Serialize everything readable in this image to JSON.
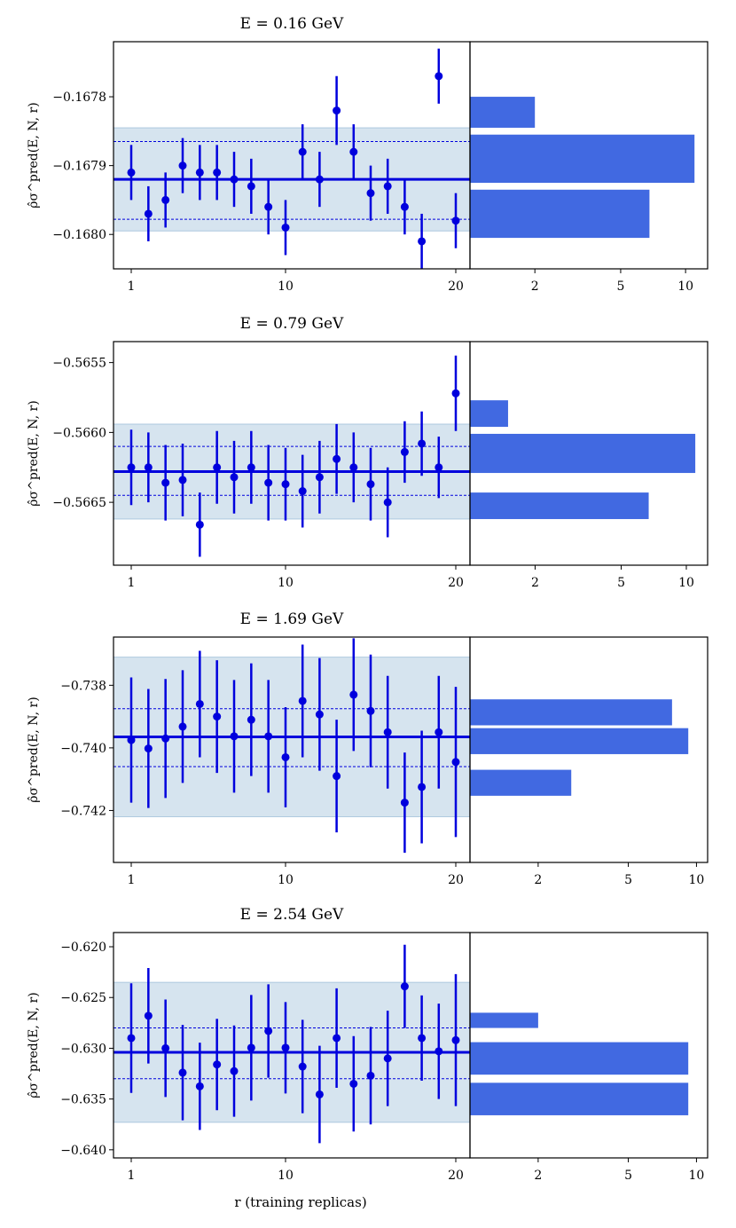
{
  "figure": {
    "xlabel": "r (training replicas)"
  },
  "chart_data": [
    {
      "type": "scatter",
      "title": "E = 0.16 GeV",
      "ylabel": "ρ̂σ^pred(E, N, r)",
      "x_ticks": [
        "1",
        "10",
        "20"
      ],
      "y_ticks": [
        "−0.1678",
        "−0.1679",
        "−0.1680"
      ],
      "y_tick_values": [
        -0.1678,
        -0.1679,
        -0.168
      ],
      "ylim": [
        -0.16805,
        -0.16772
      ],
      "mean": -0.16792,
      "inner_band": [
        -0.167865,
        -0.167978
      ],
      "outer_band": [
        -0.167845,
        -0.167995
      ],
      "points": [
        {
          "x": 1,
          "y": -0.16791,
          "err": 4e-05
        },
        {
          "x": 2,
          "y": -0.16797,
          "err": 4e-05
        },
        {
          "x": 3,
          "y": -0.16795,
          "err": 4e-05
        },
        {
          "x": 4,
          "y": -0.1679,
          "err": 4e-05
        },
        {
          "x": 5,
          "y": -0.16791,
          "err": 4e-05
        },
        {
          "x": 6,
          "y": -0.16791,
          "err": 4e-05
        },
        {
          "x": 7,
          "y": -0.16792,
          "err": 4e-05
        },
        {
          "x": 8,
          "y": -0.16793,
          "err": 4e-05
        },
        {
          "x": 9,
          "y": -0.16796,
          "err": 4e-05
        },
        {
          "x": 10,
          "y": -0.16799,
          "err": 4e-05
        },
        {
          "x": 11,
          "y": -0.16788,
          "err": 4e-05
        },
        {
          "x": 12,
          "y": -0.16792,
          "err": 4e-05
        },
        {
          "x": 13,
          "y": -0.16782,
          "err": 5e-05
        },
        {
          "x": 14,
          "y": -0.16788,
          "err": 4e-05
        },
        {
          "x": 15,
          "y": -0.16794,
          "err": 4e-05
        },
        {
          "x": 16,
          "y": -0.16793,
          "err": 4e-05
        },
        {
          "x": 17,
          "y": -0.16796,
          "err": 4e-05
        },
        {
          "x": 18,
          "y": -0.16801,
          "err": 4e-05
        },
        {
          "x": 19,
          "y": -0.16777,
          "err": 4e-05
        },
        {
          "x": 20,
          "y": -0.16798,
          "err": 4e-05
        }
      ],
      "histogram": {
        "x_ticks": [
          "2",
          "5",
          "10"
        ],
        "x_tick_values": [
          2,
          5,
          10
        ],
        "xmax": 11.3,
        "bins": [
          {
            "y0": -0.1678,
            "y1": -0.167845,
            "count": 2
          },
          {
            "y0": -0.167855,
            "y1": -0.167925,
            "count": 11
          },
          {
            "y0": -0.167935,
            "y1": -0.168005,
            "count": 6.8
          }
        ]
      }
    },
    {
      "type": "scatter",
      "title": "E = 0.79 GeV",
      "ylabel": "ρ̂σ^pred(E, N, r)",
      "x_ticks": [
        "1",
        "10",
        "20"
      ],
      "y_ticks": [
        "−0.5655",
        "−0.5660",
        "−0.5665"
      ],
      "y_tick_values": [
        -0.5655,
        -0.566,
        -0.5665
      ],
      "ylim": [
        -0.56695,
        -0.56535
      ],
      "mean": -0.56628,
      "inner_band": [
        -0.5661,
        -0.56645
      ],
      "outer_band": [
        -0.56594,
        -0.56662
      ],
      "points": [
        {
          "x": 1,
          "y": -0.56625,
          "err": 0.00027
        },
        {
          "x": 2,
          "y": -0.56625,
          "err": 0.00025
        },
        {
          "x": 3,
          "y": -0.56636,
          "err": 0.00027
        },
        {
          "x": 4,
          "y": -0.56634,
          "err": 0.00026
        },
        {
          "x": 5,
          "y": -0.56666,
          "err": 0.00023
        },
        {
          "x": 6,
          "y": -0.56625,
          "err": 0.00026
        },
        {
          "x": 7,
          "y": -0.56632,
          "err": 0.00026
        },
        {
          "x": 8,
          "y": -0.56625,
          "err": 0.00026
        },
        {
          "x": 9,
          "y": -0.56636,
          "err": 0.00027
        },
        {
          "x": 10,
          "y": -0.56637,
          "err": 0.00026
        },
        {
          "x": 11,
          "y": -0.56642,
          "err": 0.00026
        },
        {
          "x": 12,
          "y": -0.56632,
          "err": 0.00026
        },
        {
          "x": 13,
          "y": -0.56619,
          "err": 0.00025
        },
        {
          "x": 14,
          "y": -0.56625,
          "err": 0.00025
        },
        {
          "x": 15,
          "y": -0.56637,
          "err": 0.00026
        },
        {
          "x": 16,
          "y": -0.5665,
          "err": 0.00025
        },
        {
          "x": 17,
          "y": -0.56614,
          "err": 0.00022
        },
        {
          "x": 18,
          "y": -0.56608,
          "err": 0.00023
        },
        {
          "x": 19,
          "y": -0.56625,
          "err": 0.00022
        },
        {
          "x": 20,
          "y": -0.56572,
          "err": 0.00027
        }
      ],
      "histogram": {
        "x_ticks": [
          "2",
          "5",
          "10"
        ],
        "x_tick_values": [
          2,
          5,
          10
        ],
        "xmax": 11.2,
        "bins": [
          {
            "y0": -0.56577,
            "y1": -0.56596,
            "count": 1.5
          },
          {
            "y0": -0.56601,
            "y1": -0.56629,
            "count": 11
          },
          {
            "y0": -0.56643,
            "y1": -0.56662,
            "count": 6.7
          }
        ]
      }
    },
    {
      "type": "scatter",
      "title": "E = 1.69 GeV",
      "ylabel": "ρ̂σ^pred(E, N, r)",
      "x_ticks": [
        "1",
        "10",
        "20"
      ],
      "y_ticks": [
        "−0.738",
        "−0.740",
        "−0.742"
      ],
      "y_tick_values": [
        -0.738,
        -0.74,
        -0.742
      ],
      "ylim": [
        -0.74366,
        -0.73646
      ],
      "mean": -0.73965,
      "inner_band": [
        -0.73875,
        -0.7406
      ],
      "outer_band": [
        -0.7371,
        -0.7422
      ],
      "points": [
        {
          "x": 1,
          "y": -0.73975,
          "err": 0.002
        },
        {
          "x": 2,
          "y": -0.74002,
          "err": 0.0019
        },
        {
          "x": 3,
          "y": -0.7397,
          "err": 0.0019
        },
        {
          "x": 4,
          "y": -0.73932,
          "err": 0.0018
        },
        {
          "x": 5,
          "y": -0.7386,
          "err": 0.0017
        },
        {
          "x": 6,
          "y": -0.739,
          "err": 0.0018
        },
        {
          "x": 7,
          "y": -0.73963,
          "err": 0.0018
        },
        {
          "x": 8,
          "y": -0.7391,
          "err": 0.0018
        },
        {
          "x": 9,
          "y": -0.73963,
          "err": 0.0018
        },
        {
          "x": 10,
          "y": -0.7403,
          "err": 0.0016
        },
        {
          "x": 11,
          "y": -0.7385,
          "err": 0.0018
        },
        {
          "x": 12,
          "y": -0.73893,
          "err": 0.0018
        },
        {
          "x": 13,
          "y": -0.7409,
          "err": 0.0018
        },
        {
          "x": 14,
          "y": -0.7383,
          "err": 0.0018
        },
        {
          "x": 15,
          "y": -0.73882,
          "err": 0.0018
        },
        {
          "x": 16,
          "y": -0.7395,
          "err": 0.0018
        },
        {
          "x": 17,
          "y": -0.74175,
          "err": 0.0016
        },
        {
          "x": 18,
          "y": -0.74125,
          "err": 0.0018
        },
        {
          "x": 19,
          "y": -0.7395,
          "err": 0.0018
        },
        {
          "x": 20,
          "y": -0.74045,
          "err": 0.0024
        }
      ],
      "histogram": {
        "x_ticks": [
          "2",
          "5",
          "10"
        ],
        "x_tick_values": [
          2,
          5,
          10
        ],
        "xmax": 10.0,
        "bins": [
          {
            "y0": -0.73845,
            "y1": -0.73928,
            "count": 7.8
          },
          {
            "y0": -0.73937,
            "y1": -0.7402,
            "count": 9.2
          },
          {
            "y0": -0.7407,
            "y1": -0.74153,
            "count": 2.8
          }
        ]
      }
    },
    {
      "type": "scatter",
      "title": "E = 2.54 GeV",
      "ylabel": "ρ̂σ^pred(E, N, r)",
      "x_ticks": [
        "1",
        "10",
        "20"
      ],
      "y_ticks": [
        "−0.620",
        "−0.625",
        "−0.630",
        "−0.635",
        "−0.640"
      ],
      "y_tick_values": [
        -0.62,
        -0.625,
        -0.63,
        -0.635,
        -0.64
      ],
      "ylim": [
        -0.6408,
        -0.6186
      ],
      "mean": -0.6304,
      "inner_band": [
        -0.628,
        -0.633
      ],
      "outer_band": [
        -0.6235,
        -0.6373
      ],
      "points": [
        {
          "x": 1,
          "y": -0.629,
          "err": 0.0054
        },
        {
          "x": 2,
          "y": -0.6268,
          "err": 0.0047
        },
        {
          "x": 3,
          "y": -0.63,
          "err": 0.0048
        },
        {
          "x": 4,
          "y": -0.6324,
          "err": 0.0047
        },
        {
          "x": 5,
          "y": -0.63375,
          "err": 0.0043
        },
        {
          "x": 6,
          "y": -0.6316,
          "err": 0.0045
        },
        {
          "x": 7,
          "y": -0.63225,
          "err": 0.0045
        },
        {
          "x": 8,
          "y": -0.62995,
          "err": 0.0052
        },
        {
          "x": 9,
          "y": -0.6283,
          "err": 0.0046
        },
        {
          "x": 10,
          "y": -0.62995,
          "err": 0.0045
        },
        {
          "x": 11,
          "y": -0.6318,
          "err": 0.0046
        },
        {
          "x": 12,
          "y": -0.63455,
          "err": 0.0048
        },
        {
          "x": 13,
          "y": -0.629,
          "err": 0.0049
        },
        {
          "x": 14,
          "y": -0.6335,
          "err": 0.0047
        },
        {
          "x": 15,
          "y": -0.6327,
          "err": 0.0048
        },
        {
          "x": 16,
          "y": -0.631,
          "err": 0.0047
        },
        {
          "x": 17,
          "y": -0.6239,
          "err": 0.0041
        },
        {
          "x": 18,
          "y": -0.629,
          "err": 0.0042
        },
        {
          "x": 19,
          "y": -0.6303,
          "err": 0.0047
        },
        {
          "x": 20,
          "y": -0.6292,
          "err": 0.0065
        }
      ],
      "histogram": {
        "x_ticks": [
          "2",
          "5",
          "10"
        ],
        "x_tick_values": [
          2,
          5,
          10
        ],
        "xmax": 10.0,
        "bins": [
          {
            "y0": -0.6265,
            "y1": -0.628,
            "count": 2
          },
          {
            "y0": -0.6294,
            "y1": -0.6326,
            "count": 9.2
          },
          {
            "y0": -0.6334,
            "y1": -0.6366,
            "count": 9.2
          }
        ]
      }
    }
  ]
}
